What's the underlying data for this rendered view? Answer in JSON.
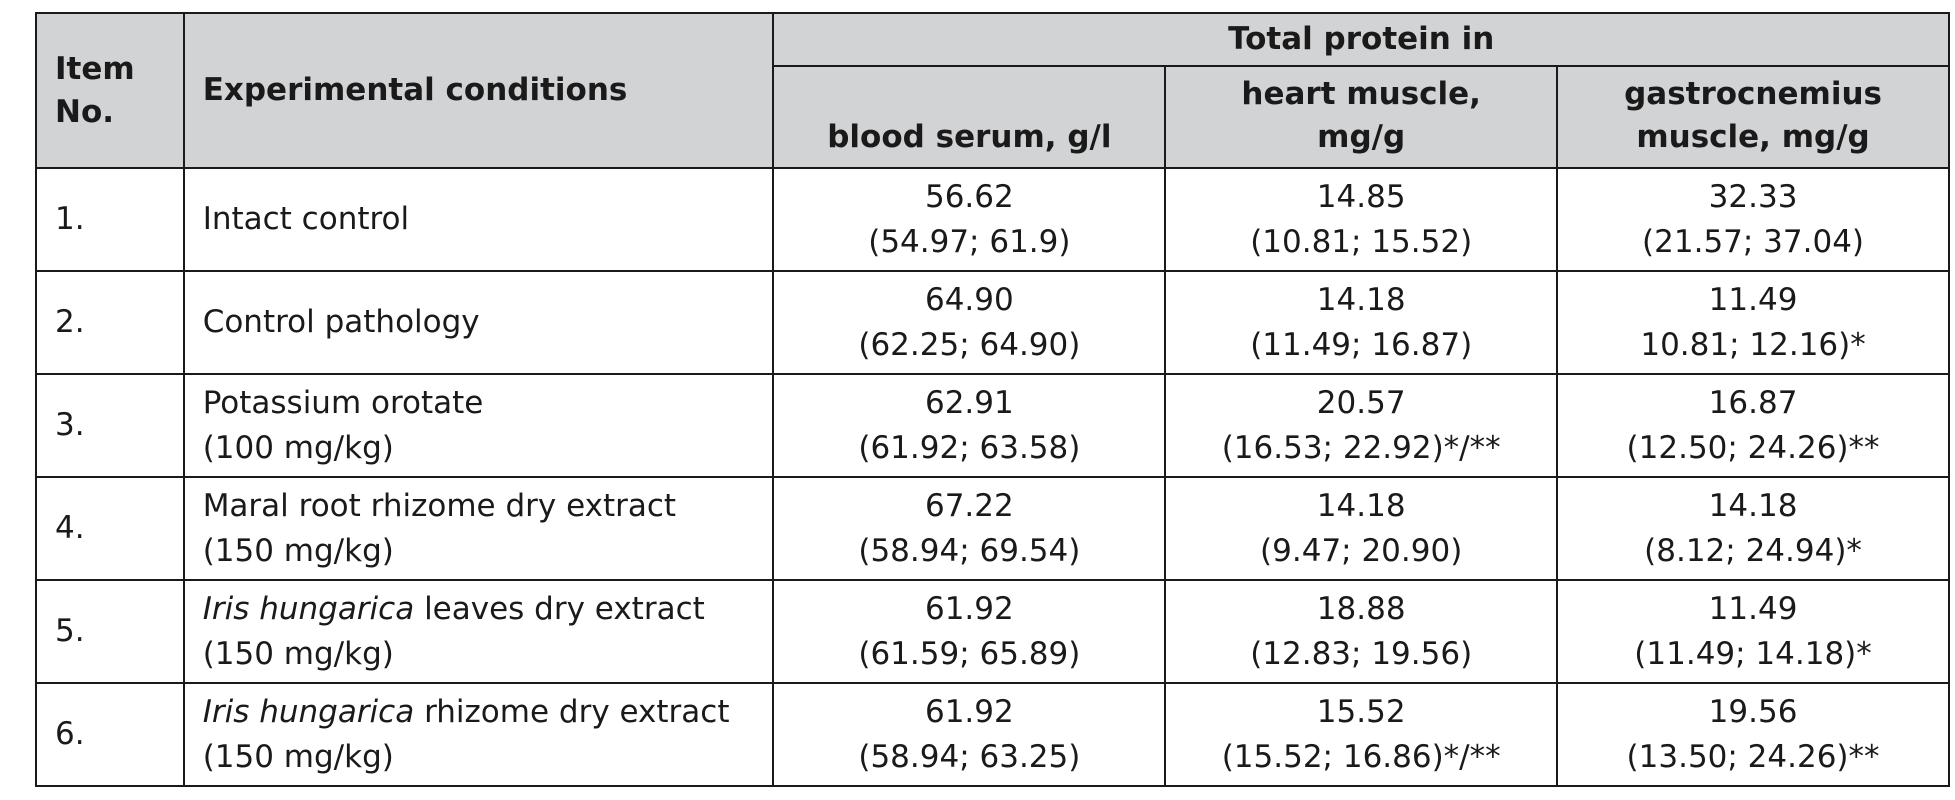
{
  "header": {
    "item_no_line1": "Item",
    "item_no_line2": "No.",
    "conditions": "Experimental conditions",
    "total_protein": "Total protein in",
    "blood_serum": "blood serum, g/l",
    "heart_line1": "heart muscle,",
    "heart_line2": "mg/g",
    "gastro_line1": "gastrocnemius",
    "gastro_line2": "muscle, mg/g"
  },
  "rows": [
    {
      "no": "1.",
      "cond_italic": "",
      "cond_line1": "Intact control",
      "cond_line2": "",
      "serum_median": "56.62",
      "serum_range": "(54.97; 61.9)",
      "heart_median": "14.85",
      "heart_range": "(10.81; 15.52)",
      "gastro_median": "32.33",
      "gastro_range": "(21.57; 37.04)"
    },
    {
      "no": "2.",
      "cond_italic": "",
      "cond_line1": "Control pathology",
      "cond_line2": "",
      "serum_median": "64.90",
      "serum_range": "(62.25; 64.90)",
      "heart_median": "14.18",
      "heart_range": "(11.49; 16.87)",
      "gastro_median": "11.49",
      "gastro_range": "10.81; 12.16)*"
    },
    {
      "no": "3.",
      "cond_italic": "",
      "cond_line1": "Potassium orotate",
      "cond_line2": "(100 mg/kg)",
      "serum_median": "62.91",
      "serum_range": "(61.92; 63.58)",
      "heart_median": "20.57",
      "heart_range": "(16.53; 22.92)*/**",
      "gastro_median": "16.87",
      "gastro_range": "(12.50; 24.26)**"
    },
    {
      "no": "4.",
      "cond_italic": "",
      "cond_line1": "Maral root rhizome dry extract",
      "cond_line2": "(150 mg/kg)",
      "serum_median": "67.22",
      "serum_range": "(58.94; 69.54)",
      "heart_median": "14.18",
      "heart_range": "(9.47; 20.90)",
      "gastro_median": "14.18",
      "gastro_range": "(8.12; 24.94)*"
    },
    {
      "no": "5.",
      "cond_italic": "Iris hungarica",
      "cond_line1": " leaves dry extract",
      "cond_line2": "(150 mg/kg)",
      "serum_median": "61.92",
      "serum_range": "(61.59; 65.89)",
      "heart_median": "18.88",
      "heart_range": "(12.83; 19.56)",
      "gastro_median": "11.49",
      "gastro_range": "(11.49; 14.18)*"
    },
    {
      "no": "6.",
      "cond_italic": "Iris hungarica",
      "cond_line1": " rhizome dry extract",
      "cond_line2": "(150 mg/kg)",
      "serum_median": "61.92",
      "serum_range": "(58.94; 63.25)",
      "heart_median": "15.52",
      "heart_range": "(15.52; 16.86)*/**",
      "gastro_median": "19.56",
      "gastro_range": "(13.50; 24.26)**"
    }
  ]
}
